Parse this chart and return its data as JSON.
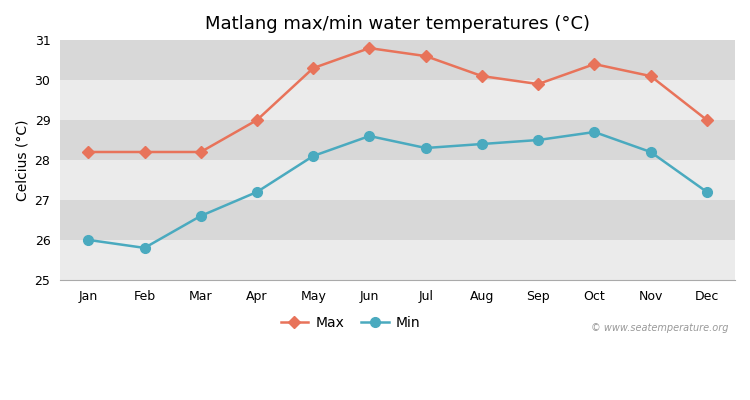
{
  "months": [
    "Jan",
    "Feb",
    "Mar",
    "Apr",
    "May",
    "Jun",
    "Jul",
    "Aug",
    "Sep",
    "Oct",
    "Nov",
    "Dec"
  ],
  "max_temps": [
    28.2,
    28.2,
    28.2,
    29.0,
    30.3,
    30.8,
    30.6,
    30.1,
    29.9,
    30.4,
    30.1,
    29.0
  ],
  "min_temps": [
    26.0,
    25.8,
    26.6,
    27.2,
    28.1,
    28.6,
    28.3,
    28.4,
    28.5,
    28.7,
    28.2,
    27.2
  ],
  "max_color": "#e8735a",
  "min_color": "#4aaabf",
  "figure_bg_color": "#ffffff",
  "band_light": "#ebebeb",
  "band_dark": "#d8d8d8",
  "grid_color": "#ffffff",
  "title": "Matlang max/min water temperatures (°C)",
  "ylabel": "Celcius (°C)",
  "ylim": [
    25,
    31
  ],
  "yticks": [
    25,
    26,
    27,
    28,
    29,
    30,
    31
  ],
  "watermark": "© www.seatemperature.org",
  "legend_max": "Max",
  "legend_min": "Min",
  "max_marker": "D",
  "min_marker": "o",
  "marker_size_max": 6,
  "marker_size_min": 7,
  "line_width": 1.8,
  "title_fontsize": 13,
  "label_fontsize": 10,
  "tick_fontsize": 9
}
